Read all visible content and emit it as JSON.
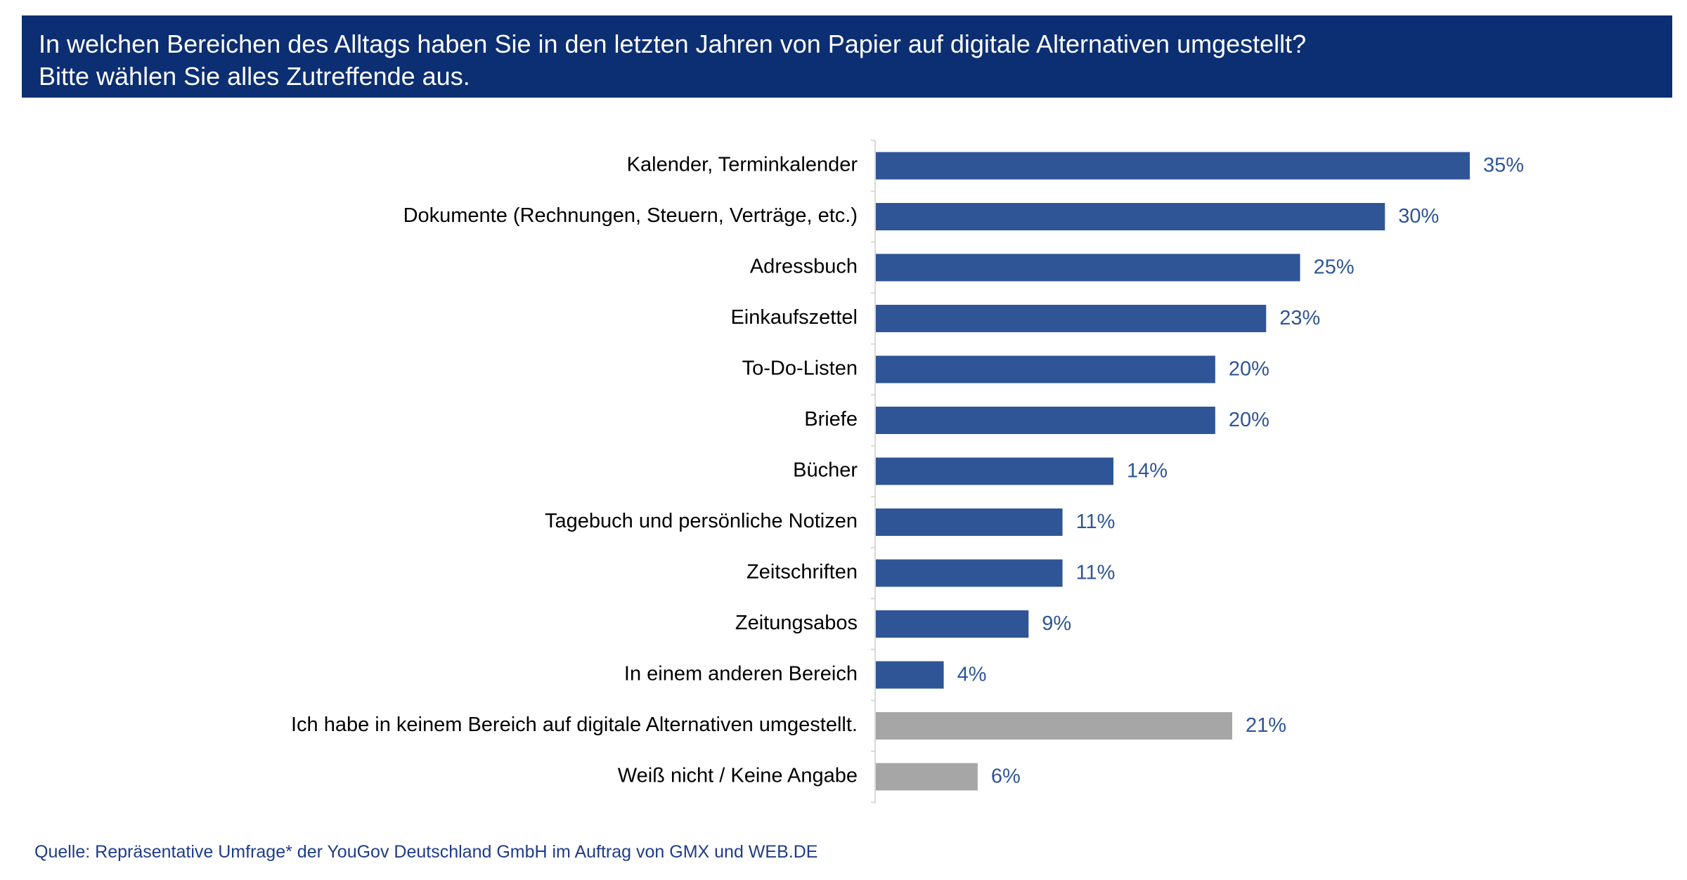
{
  "header": {
    "line1": "In welchen Bereichen des Alltags haben Sie in den letzten Jahren von Papier auf digitale Alternativen umgestellt?",
    "line2": "Bitte wählen Sie alles Zutreffende aus."
  },
  "source": "Quelle: Repräsentative Umfrage* der YouGov Deutschland GmbH im Auftrag von GMX und WEB.DE",
  "colors": {
    "header_bg": "#0c2e72",
    "bar_primary": "#2f5597",
    "bar_secondary": "#a6a6a6",
    "value_text": "#2f5597",
    "source_text": "#1f3c88"
  },
  "chart_data": {
    "type": "bar",
    "orientation": "horizontal",
    "title": "",
    "xlabel": "",
    "ylabel": "",
    "grid": false,
    "value_format": "percent",
    "xlim": [
      0,
      35
    ],
    "categories": [
      "Kalender, Terminkalender",
      "Dokumente (Rechnungen, Steuern, Verträge, etc.)",
      "Adressbuch",
      "Einkaufszettel",
      "To-Do-Listen",
      "Briefe",
      "Bücher",
      "Tagebuch und persönliche Notizen",
      "Zeitschriften",
      "Zeitungsabos",
      "In einem anderen Bereich",
      "Ich habe in keinem Bereich auf digitale Alternativen umgestellt.",
      "Weiß nicht / Keine Angabe"
    ],
    "values": [
      35,
      30,
      25,
      23,
      20,
      20,
      14,
      11,
      11,
      9,
      4,
      21,
      6
    ],
    "value_labels": [
      "35%",
      "30%",
      "25%",
      "23%",
      "20%",
      "20%",
      "14%",
      "11%",
      "11%",
      "9%",
      "4%",
      "21%",
      "6%"
    ],
    "bar_colors": [
      "#2f5597",
      "#2f5597",
      "#2f5597",
      "#2f5597",
      "#2f5597",
      "#2f5597",
      "#2f5597",
      "#2f5597",
      "#2f5597",
      "#2f5597",
      "#2f5597",
      "#a6a6a6",
      "#a6a6a6"
    ]
  }
}
